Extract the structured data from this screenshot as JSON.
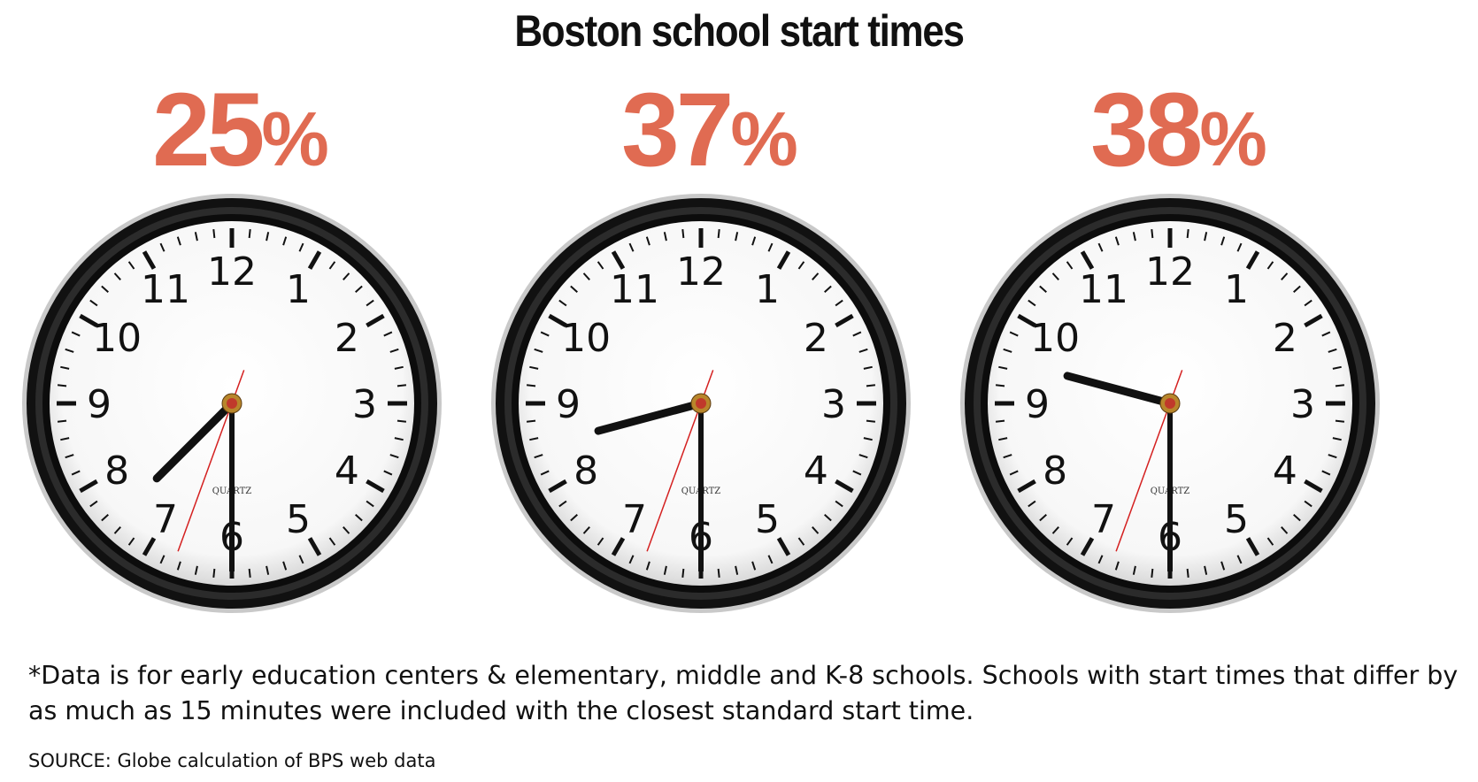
{
  "chart_data": {
    "type": "clock-infographic",
    "title": "Boston school start times",
    "series": [
      {
        "percent_label": "25",
        "percent_symbol": "%",
        "value": 25,
        "time": "7:30"
      },
      {
        "percent_label": "37",
        "percent_symbol": "%",
        "value": 37,
        "time": "8:30"
      },
      {
        "percent_label": "38",
        "percent_symbol": "%",
        "value": 38,
        "time": "9:30"
      }
    ],
    "clock_numerals": [
      "12",
      "1",
      "2",
      "3",
      "4",
      "5",
      "6",
      "7",
      "8",
      "9",
      "10",
      "11"
    ],
    "dial_text": "QUARTZ",
    "note": "*Data is for early education centers & elementary, middle and K-8 schools. Schools with start times that differ by as much as 15 minutes were included with the closest standard start time.",
    "source": "SOURCE: Globe calculation of BPS web data",
    "colors": {
      "percent": "#e06b52",
      "hands": "#111111",
      "second_hand": "#d42020"
    }
  }
}
